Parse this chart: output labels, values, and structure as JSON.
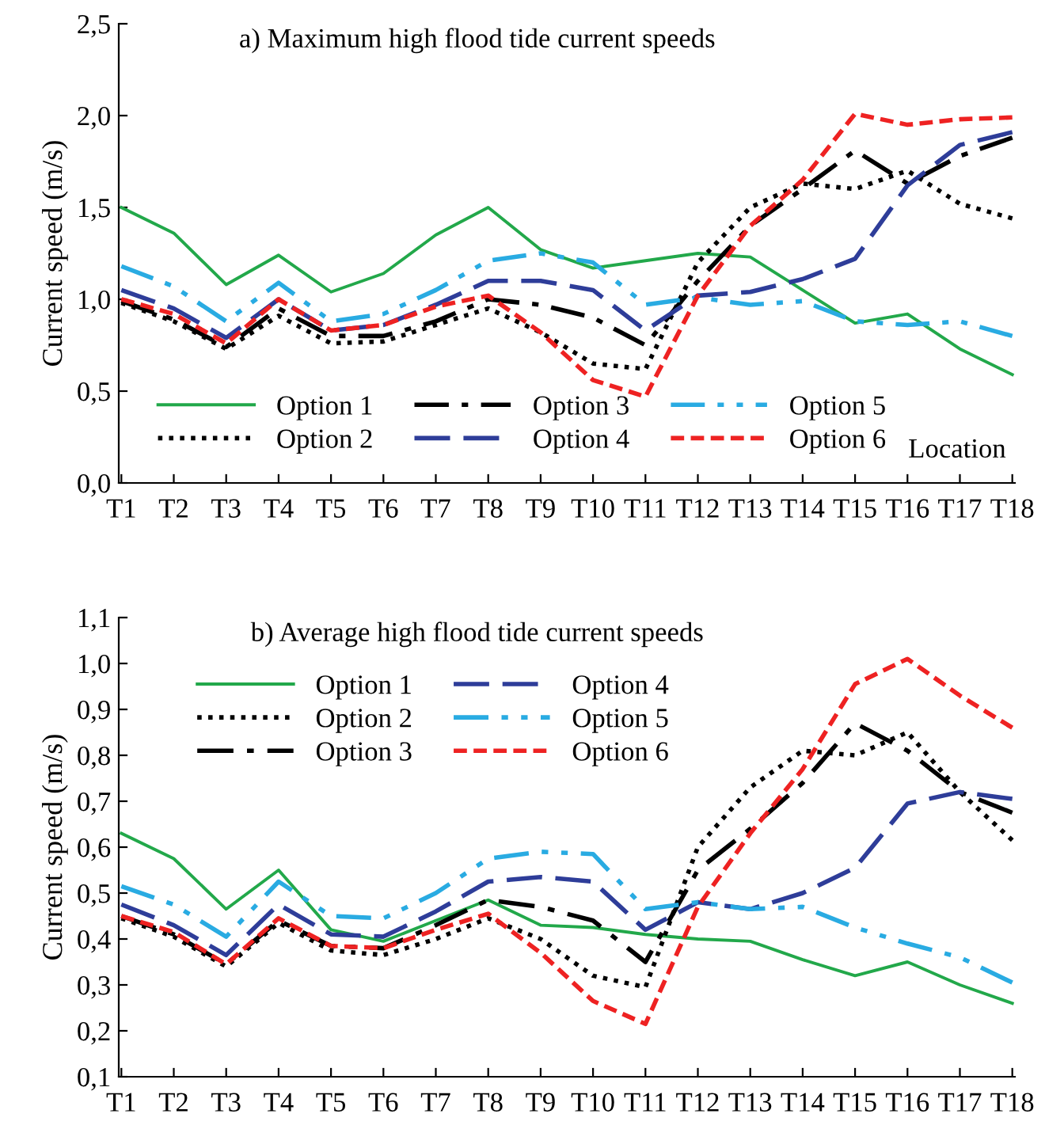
{
  "chart_data": [
    {
      "type": "line",
      "title": "a) Maximum high flood tide current speeds",
      "ylabel": "Current speed (m/s)",
      "xlabel": "Location",
      "categories": [
        "T1",
        "T2",
        "T3",
        "T4",
        "T5",
        "T6",
        "T7",
        "T8",
        "T9",
        "T10",
        "T11",
        "T12",
        "T13",
        "T14",
        "T15",
        "T16",
        "T17",
        "T18"
      ],
      "ylim": [
        0,
        2.5
      ],
      "yticks": [
        {
          "value": 0,
          "label": "0,0"
        },
        {
          "value": 0.5,
          "label": "0,5"
        },
        {
          "value": 1,
          "label": "1,0"
        },
        {
          "value": 1.5,
          "label": "1,5"
        },
        {
          "value": 2,
          "label": "2,0"
        },
        {
          "value": 2.5,
          "label": "2,5"
        }
      ],
      "grid": false,
      "legend": "bottom",
      "marker": "none",
      "series": [
        {
          "name": "Option 1",
          "color": "#22a84a",
          "line_style": "solid",
          "values": [
            1.5,
            1.36,
            1.08,
            1.24,
            1.04,
            1.14,
            1.35,
            1.5,
            1.27,
            1.17,
            1.21,
            1.25,
            1.23,
            1.05,
            0.87,
            0.92,
            0.73,
            0.59
          ]
        },
        {
          "name": "Option 2",
          "color": "#000000",
          "line_style": "dotted",
          "values": [
            0.98,
            0.88,
            0.73,
            0.91,
            0.76,
            0.77,
            0.86,
            0.95,
            0.82,
            0.65,
            0.62,
            1.2,
            1.5,
            1.63,
            1.6,
            1.7,
            1.52,
            1.44
          ]
        },
        {
          "name": "Option 3",
          "color": "#000000",
          "line_style": "dashdot",
          "values": [
            0.99,
            0.89,
            0.74,
            0.95,
            0.8,
            0.8,
            0.88,
            1.0,
            0.97,
            0.9,
            0.75,
            1.1,
            1.4,
            1.6,
            1.81,
            1.63,
            1.78,
            1.88
          ]
        },
        {
          "name": "Option 4",
          "color": "#2e3d99",
          "line_style": "longdash",
          "values": [
            1.05,
            0.95,
            0.79,
            1.0,
            0.83,
            0.86,
            0.97,
            1.1,
            1.1,
            1.05,
            0.83,
            1.02,
            1.04,
            1.11,
            1.22,
            1.62,
            1.84,
            1.91
          ]
        },
        {
          "name": "Option 5",
          "color": "#29abe2",
          "line_style": "dashdotdot",
          "values": [
            1.18,
            1.07,
            0.88,
            1.09,
            0.88,
            0.92,
            1.05,
            1.21,
            1.25,
            1.2,
            0.97,
            1.01,
            0.97,
            0.99,
            0.88,
            0.86,
            0.88,
            0.8
          ]
        },
        {
          "name": "Option 6",
          "color": "#ee2222",
          "line_style": "dashed",
          "values": [
            1.0,
            0.92,
            0.76,
            1.0,
            0.83,
            0.86,
            0.96,
            1.02,
            0.82,
            0.56,
            0.47,
            1.02,
            1.4,
            1.65,
            2.01,
            1.95,
            1.98,
            1.99
          ]
        }
      ]
    },
    {
      "type": "line",
      "title": "b) Average high flood tide current speeds",
      "ylabel": "Current speed (m/s)",
      "categories": [
        "T1",
        "T2",
        "T3",
        "T4",
        "T5",
        "T6",
        "T7",
        "T8",
        "T9",
        "T10",
        "T11",
        "T12",
        "T13",
        "T14",
        "T15",
        "T16",
        "T17",
        "T18"
      ],
      "ylim": [
        0.1,
        1.1
      ],
      "yticks": [
        {
          "value": 0.1,
          "label": "0,1"
        },
        {
          "value": 0.2,
          "label": "0,2"
        },
        {
          "value": 0.3,
          "label": "0,3"
        },
        {
          "value": 0.4,
          "label": "0,4"
        },
        {
          "value": 0.5,
          "label": "0,5"
        },
        {
          "value": 0.6,
          "label": "0,6"
        },
        {
          "value": 0.7,
          "label": "0,7"
        },
        {
          "value": 0.8,
          "label": "0,8"
        },
        {
          "value": 0.9,
          "label": "0,9"
        },
        {
          "value": 1.0,
          "label": "1,0"
        },
        {
          "value": 1.1,
          "label": "1,1"
        }
      ],
      "grid": false,
      "legend": "top left",
      "marker": "none",
      "series": [
        {
          "name": "Option 1",
          "color": "#22a84a",
          "line_style": "solid",
          "values": [
            0.63,
            0.575,
            0.465,
            0.55,
            0.42,
            0.395,
            0.44,
            0.485,
            0.43,
            0.425,
            0.41,
            0.4,
            0.395,
            0.355,
            0.32,
            0.35,
            0.3,
            0.26
          ]
        },
        {
          "name": "Option 2",
          "color": "#000000",
          "line_style": "dotted",
          "values": [
            0.445,
            0.405,
            0.34,
            0.435,
            0.375,
            0.365,
            0.4,
            0.445,
            0.4,
            0.32,
            0.295,
            0.6,
            0.73,
            0.81,
            0.8,
            0.85,
            0.72,
            0.615
          ]
        },
        {
          "name": "Option 3",
          "color": "#000000",
          "line_style": "dashdot",
          "values": [
            0.45,
            0.41,
            0.345,
            0.44,
            0.385,
            0.38,
            0.43,
            0.485,
            0.47,
            0.44,
            0.35,
            0.55,
            0.64,
            0.74,
            0.87,
            0.81,
            0.72,
            0.675
          ]
        },
        {
          "name": "Option 4",
          "color": "#2e3d99",
          "line_style": "longdash",
          "values": [
            0.475,
            0.43,
            0.365,
            0.475,
            0.41,
            0.405,
            0.46,
            0.525,
            0.535,
            0.525,
            0.42,
            0.48,
            0.465,
            0.5,
            0.555,
            0.695,
            0.72,
            0.705
          ]
        },
        {
          "name": "Option 5",
          "color": "#29abe2",
          "line_style": "dashdotdot",
          "values": [
            0.515,
            0.475,
            0.405,
            0.525,
            0.45,
            0.445,
            0.5,
            0.575,
            0.59,
            0.585,
            0.465,
            0.48,
            0.465,
            0.47,
            0.425,
            0.39,
            0.36,
            0.305
          ]
        },
        {
          "name": "Option 6",
          "color": "#ee2222",
          "line_style": "dashed",
          "values": [
            0.45,
            0.415,
            0.345,
            0.445,
            0.385,
            0.38,
            0.42,
            0.455,
            0.37,
            0.265,
            0.215,
            0.47,
            0.63,
            0.77,
            0.955,
            1.01,
            0.93,
            0.86
          ]
        }
      ]
    }
  ]
}
